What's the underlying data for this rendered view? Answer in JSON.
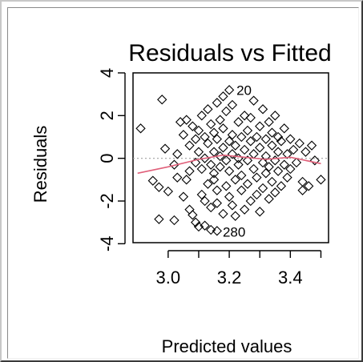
{
  "chart_data": {
    "type": "scatter",
    "title": "Residuals vs Fitted",
    "xlabel": "Predicted values",
    "ylabel": "Residuals",
    "xlim": [
      2.885,
      3.525
    ],
    "ylim": [
      -3.95,
      4.0
    ],
    "xticks": [
      3.0,
      3.1,
      3.2,
      3.3,
      3.4,
      3.5
    ],
    "xtick_labels": [
      "3.0",
      "",
      "3.2",
      "",
      "3.4",
      ""
    ],
    "yticks": [
      -4,
      -2,
      0,
      2,
      4
    ],
    "ytick_labels": [
      "-4",
      "-2",
      "0",
      "2",
      "4"
    ],
    "reference_line": {
      "y": 0,
      "style": "dotted",
      "color": "#a0a0a0"
    },
    "smoother_color": "#e0607a",
    "point_color": "#000000",
    "smoother": [
      [
        2.9,
        -0.7
      ],
      [
        3.0,
        -0.4
      ],
      [
        3.1,
        -0.05
      ],
      [
        3.18,
        0.15
      ],
      [
        3.25,
        0.05
      ],
      [
        3.32,
        -0.05
      ],
      [
        3.4,
        0.05
      ],
      [
        3.5,
        -0.25
      ]
    ],
    "annotations": [
      {
        "text": "20",
        "x": 3.2,
        "y": 3.2
      },
      {
        "text": "280",
        "x": 3.155,
        "y": -3.45
      }
    ],
    "points": [
      [
        2.91,
        1.4
      ],
      [
        2.95,
        -1.05
      ],
      [
        2.97,
        -1.35
      ],
      [
        2.97,
        -2.85
      ],
      [
        2.98,
        2.75
      ],
      [
        2.99,
        0.45
      ],
      [
        3.0,
        -1.55
      ],
      [
        3.02,
        -2.9
      ],
      [
        3.02,
        -0.3
      ],
      [
        3.03,
        -0.9
      ],
      [
        3.03,
        0.2
      ],
      [
        3.04,
        1.7
      ],
      [
        3.05,
        1.1
      ],
      [
        3.05,
        -1.8
      ],
      [
        3.06,
        1.8
      ],
      [
        3.06,
        -1.0
      ],
      [
        3.07,
        -2.4
      ],
      [
        3.07,
        -0.6
      ],
      [
        3.07,
        0.6
      ],
      [
        3.08,
        -2.65
      ],
      [
        3.08,
        1.5
      ],
      [
        3.09,
        -3.0
      ],
      [
        3.09,
        -0.2
      ],
      [
        3.09,
        0.9
      ],
      [
        3.1,
        -3.2
      ],
      [
        3.1,
        1.3
      ],
      [
        3.1,
        0.3
      ],
      [
        3.11,
        -1.7
      ],
      [
        3.11,
        -0.5
      ],
      [
        3.11,
        2.0
      ],
      [
        3.12,
        -2.0
      ],
      [
        3.12,
        0.0
      ],
      [
        3.12,
        1.0
      ],
      [
        3.12,
        -3.15
      ],
      [
        3.13,
        0.7
      ],
      [
        3.13,
        -1.2
      ],
      [
        3.13,
        2.3
      ],
      [
        3.14,
        -0.3
      ],
      [
        3.14,
        1.6
      ],
      [
        3.14,
        -2.3
      ],
      [
        3.14,
        -3.35
      ],
      [
        3.15,
        0.3
      ],
      [
        3.15,
        1.2
      ],
      [
        3.15,
        -1.0
      ],
      [
        3.15,
        -0.7
      ],
      [
        3.16,
        2.6
      ],
      [
        3.16,
        0.9
      ],
      [
        3.16,
        -1.5
      ],
      [
        3.16,
        -3.4
      ],
      [
        3.16,
        -2.1
      ],
      [
        3.17,
        0.1
      ],
      [
        3.17,
        1.8
      ],
      [
        3.17,
        -0.4
      ],
      [
        3.18,
        2.9
      ],
      [
        3.18,
        -2.6
      ],
      [
        3.18,
        0.5
      ],
      [
        3.18,
        1.4
      ],
      [
        3.19,
        -1.3
      ],
      [
        3.19,
        -0.1
      ],
      [
        3.19,
        2.2
      ],
      [
        3.2,
        3.2
      ],
      [
        3.2,
        -1.8
      ],
      [
        3.2,
        0.8
      ],
      [
        3.2,
        -0.6
      ],
      [
        3.21,
        1.1
      ],
      [
        3.21,
        -2.2
      ],
      [
        3.21,
        0.2
      ],
      [
        3.21,
        2.5
      ],
      [
        3.22,
        -1.0
      ],
      [
        3.22,
        0.6
      ],
      [
        3.22,
        -2.7
      ],
      [
        3.23,
        1.7
      ],
      [
        3.23,
        -0.3
      ],
      [
        3.23,
        0.0
      ],
      [
        3.24,
        -1.5
      ],
      [
        3.24,
        1.0
      ],
      [
        3.24,
        -0.8
      ],
      [
        3.25,
        2.0
      ],
      [
        3.25,
        0.4
      ],
      [
        3.25,
        -2.4
      ],
      [
        3.26,
        -0.1
      ],
      [
        3.26,
        1.3
      ],
      [
        3.26,
        -1.2
      ],
      [
        3.27,
        0.8
      ],
      [
        3.27,
        -2.0
      ],
      [
        3.27,
        1.9
      ],
      [
        3.28,
        -0.5
      ],
      [
        3.28,
        0.2
      ],
      [
        3.28,
        2.7
      ],
      [
        3.29,
        -1.7
      ],
      [
        3.29,
        1.0
      ],
      [
        3.29,
        -0.9
      ],
      [
        3.3,
        0.5
      ],
      [
        3.3,
        -2.5
      ],
      [
        3.3,
        1.5
      ],
      [
        3.31,
        -0.2
      ],
      [
        3.31,
        2.3
      ],
      [
        3.31,
        -1.4
      ],
      [
        3.32,
        0.9
      ],
      [
        3.32,
        -0.7
      ],
      [
        3.32,
        0.1
      ],
      [
        3.33,
        1.7
      ],
      [
        3.33,
        -1.9
      ],
      [
        3.33,
        -0.4
      ],
      [
        3.34,
        0.6
      ],
      [
        3.34,
        -1.1
      ],
      [
        3.34,
        1.2
      ],
      [
        3.35,
        -0.1
      ],
      [
        3.35,
        2.0
      ],
      [
        3.35,
        -1.6
      ],
      [
        3.36,
        0.3
      ],
      [
        3.36,
        -0.6
      ],
      [
        3.36,
        1.0
      ],
      [
        3.37,
        -1.3
      ],
      [
        3.37,
        0.8
      ],
      [
        3.38,
        -0.3
      ],
      [
        3.38,
        1.4
      ],
      [
        3.39,
        0.2
      ],
      [
        3.39,
        -0.9
      ],
      [
        3.4,
        0.9
      ],
      [
        3.4,
        -0.5
      ],
      [
        3.41,
        0.4
      ],
      [
        3.42,
        -0.2
      ],
      [
        3.43,
        0.7
      ],
      [
        3.44,
        -1.1
      ],
      [
        3.44,
        -1.5
      ],
      [
        3.45,
        0.3
      ],
      [
        3.46,
        -1.3
      ],
      [
        3.47,
        0.6
      ],
      [
        3.48,
        -0.1
      ],
      [
        3.5,
        -1.0
      ]
    ]
  }
}
